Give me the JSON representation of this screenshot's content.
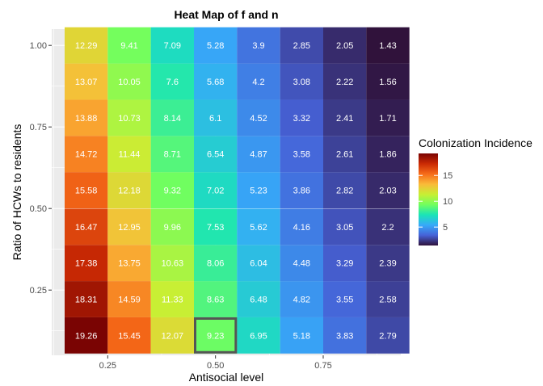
{
  "chart_data": {
    "type": "heatmap",
    "title": "Heat Map of f and n",
    "xlabel": "Antisocial level",
    "ylabel": "Ratio of HCWs to residents",
    "x_ticks": [
      "0.25",
      "0.50",
      "0.75"
    ],
    "y_ticks": [
      "0.25",
      "0.50",
      "0.75",
      "1.00"
    ],
    "x_tick_values": [
      0.25,
      0.5,
      0.75
    ],
    "y_tick_values": [
      0.25,
      0.5,
      0.75,
      1.0
    ],
    "xlim": [
      0.12,
      0.93
    ],
    "ylim": [
      0.05,
      1.05
    ],
    "x": [
      0.2,
      0.3,
      0.4,
      0.5,
      0.6,
      0.7,
      0.8,
      0.9
    ],
    "y": [
      0.111,
      0.222,
      0.333,
      0.444,
      0.556,
      0.667,
      0.778,
      0.889,
      1.0
    ],
    "values": [
      [
        "19.26",
        "15.45",
        "12.07",
        "9.23",
        "6.95",
        "5.18",
        "3.83",
        "2.79"
      ],
      [
        "18.31",
        "14.59",
        "11.33",
        "8.63",
        "6.48",
        "4.82",
        "3.55",
        "2.58"
      ],
      [
        "17.38",
        "13.75",
        "10.63",
        "8.06",
        "6.04",
        "4.48",
        "3.29",
        "2.39"
      ],
      [
        "16.47",
        "12.95",
        "9.96",
        "7.53",
        "5.62",
        "4.16",
        "3.05",
        "2.2"
      ],
      [
        "15.58",
        "12.18",
        "9.32",
        "7.02",
        "5.23",
        "3.86",
        "2.82",
        "2.03"
      ],
      [
        "14.72",
        "11.44",
        "8.71",
        "6.54",
        "4.87",
        "3.58",
        "2.61",
        "1.86"
      ],
      [
        "13.88",
        "10.73",
        "8.14",
        "6.1",
        "4.52",
        "3.32",
        "2.41",
        "1.71"
      ],
      [
        "13.07",
        "10.05",
        "7.6",
        "5.68",
        "4.2",
        "3.08",
        "2.22",
        "1.56"
      ],
      [
        "12.29",
        "9.41",
        "7.09",
        "5.28",
        "3.9",
        "2.85",
        "2.05",
        "1.43"
      ]
    ],
    "highlight": {
      "x": 0.5,
      "y": 0.111,
      "value": "9.23"
    },
    "legend": {
      "title": "Colonization Incidence",
      "ticks": [
        "15",
        "10",
        "5"
      ],
      "tick_values": [
        15,
        10,
        5
      ],
      "range": [
        1.43,
        19.26
      ],
      "colors": [
        "#30123b",
        "#4662d7",
        "#36aaf9",
        "#1ae4b6",
        "#72fe5e",
        "#c8ef34",
        "#faba39",
        "#f66b19",
        "#ca2a04",
        "#7a0403"
      ]
    },
    "panel_background": "#ebebeb",
    "grid_color": "#ffffff",
    "highlight_color": "#555555"
  }
}
